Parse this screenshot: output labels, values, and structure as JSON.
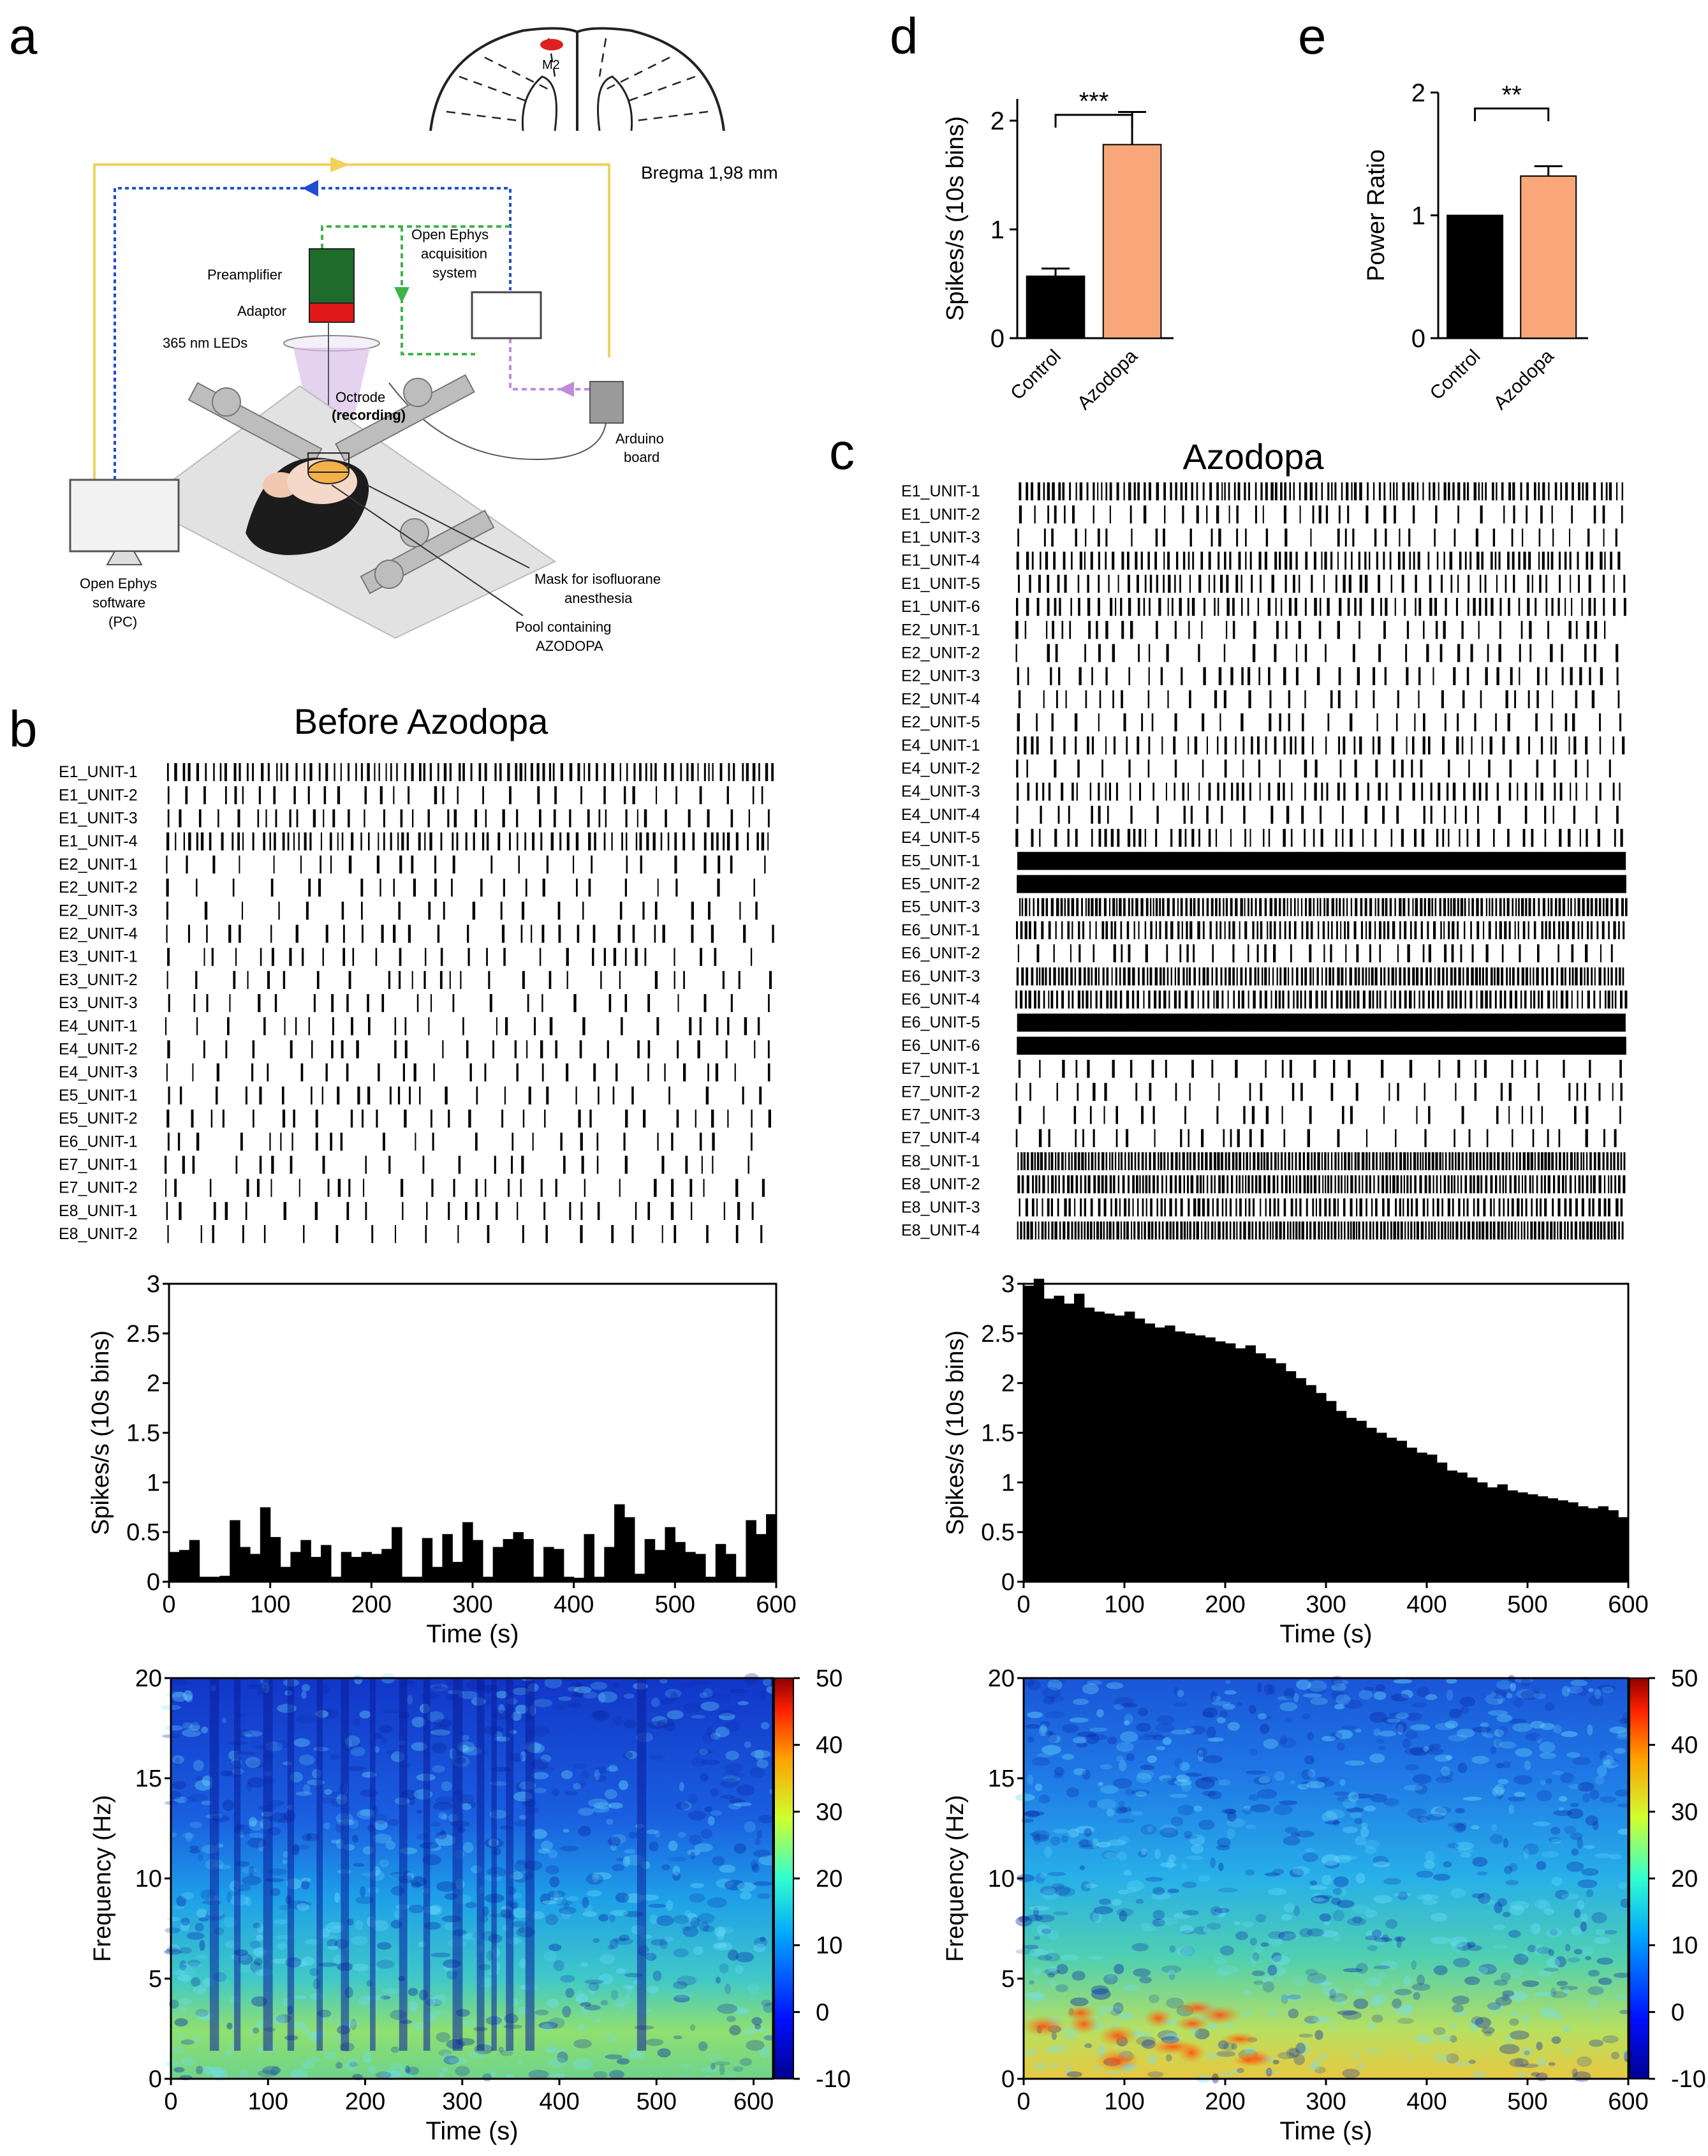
{
  "colors": {
    "black": "#000000",
    "azodopa": "#f8a67a",
    "yellow": "#f0d25a",
    "blue": "#1f4fd0",
    "green": "#3fb34a",
    "violet": "#c28bd9",
    "preamp": "#1f6b2a",
    "adaptor": "#e01818",
    "lesion": "#e02020"
  },
  "panels": {
    "a": "a",
    "b": "b",
    "c": "c",
    "d": "d",
    "e": "e"
  },
  "setup": {
    "brain_label": "M2",
    "bregma": "Bregma 1,98 mm",
    "acq_line1": "Open Ephys",
    "acq_line2": "acquisition",
    "acq_line3": "system",
    "preamp": "Preamplifier",
    "adaptor": "Adaptor",
    "leds": "365 nm LEDs",
    "octrode": "Octrode",
    "recording": "(recording)",
    "arduino1": "Arduino",
    "arduino2": "board",
    "pc1": "Open Ephys",
    "pc2": "software",
    "pc3": "(PC)",
    "mask1": "Mask for isofluorane",
    "mask2": "anesthesia",
    "pool1": "Pool containing",
    "pool2": "AZODOPA"
  },
  "titles": {
    "before": "Before Azodopa",
    "azodopa": "Azodopa"
  },
  "raster_before": {
    "units": [
      "E1_UNIT-1",
      "E1_UNIT-2",
      "E1_UNIT-3",
      "E1_UNIT-4",
      "E2_UNIT-1",
      "E2_UNIT-2",
      "E2_UNIT-3",
      "E2_UNIT-4",
      "E3_UNIT-1",
      "E3_UNIT-2",
      "E3_UNIT-3",
      "E4_UNIT-1",
      "E4_UNIT-2",
      "E4_UNIT-3",
      "E5_UNIT-1",
      "E5_UNIT-2",
      "E6_UNIT-1",
      "E7_UNIT-1",
      "E7_UNIT-2",
      "E8_UNIT-1",
      "E8_UNIT-2"
    ],
    "density": [
      0.85,
      0.45,
      0.55,
      0.8,
      0.18,
      0.15,
      0.22,
      0.28,
      0.2,
      0.12,
      0.2,
      0.22,
      0.22,
      0.22,
      0.22,
      0.22,
      0.08,
      0.1,
      0.18,
      0.22,
      0.2
    ]
  },
  "raster_azodopa": {
    "units": [
      "E1_UNIT-1",
      "E1_UNIT-2",
      "E1_UNIT-3",
      "E1_UNIT-4",
      "E1_UNIT-5",
      "E1_UNIT-6",
      "E2_UNIT-1",
      "E2_UNIT-2",
      "E2_UNIT-3",
      "E2_UNIT-4",
      "E2_UNIT-5",
      "E4_UNIT-1",
      "E4_UNIT-2",
      "E4_UNIT-3",
      "E4_UNIT-4",
      "E4_UNIT-5",
      "E5_UNIT-1",
      "E5_UNIT-2",
      "E5_UNIT-3",
      "E6_UNIT-1",
      "E6_UNIT-2",
      "E6_UNIT-3",
      "E6_UNIT-4",
      "E6_UNIT-5",
      "E6_UNIT-6",
      "E7_UNIT-1",
      "E7_UNIT-2",
      "E7_UNIT-3",
      "E7_UNIT-4",
      "E8_UNIT-1",
      "E8_UNIT-2",
      "E8_UNIT-3",
      "E8_UNIT-4"
    ],
    "density": [
      0.9,
      0.55,
      0.45,
      0.85,
      0.75,
      0.8,
      0.5,
      0.35,
      0.55,
      0.45,
      0.45,
      0.75,
      0.45,
      0.75,
      0.45,
      0.7,
      1.0,
      1.0,
      0.95,
      0.9,
      0.6,
      0.95,
      0.92,
      1.0,
      1.0,
      0.35,
      0.35,
      0.3,
      0.4,
      0.97,
      0.95,
      0.9,
      0.97
    ]
  },
  "chart_data": [
    {
      "type": "bar",
      "name": "panel-d",
      "categories": [
        "Control",
        "Azodopa"
      ],
      "values": [
        0.57,
        1.78
      ],
      "errors": [
        0.07,
        0.3
      ],
      "ylabel": "Spikes/s (10s bins)",
      "ylim": [
        0,
        2.2
      ],
      "yticks": [
        "0",
        "1",
        "2"
      ],
      "significance": "***"
    },
    {
      "type": "bar",
      "name": "panel-e",
      "categories": [
        "Control",
        "Azodopa"
      ],
      "values": [
        1.0,
        1.32
      ],
      "errors": [
        0,
        0.08
      ],
      "ylabel": "Power Ratio",
      "ylim": [
        0,
        2
      ],
      "yticks": [
        "0",
        "1",
        "2"
      ],
      "significance": "**"
    },
    {
      "type": "bar",
      "name": "rate-before",
      "x": [
        5,
        15,
        25,
        35,
        45,
        55,
        65,
        75,
        85,
        95,
        105,
        115,
        125,
        135,
        145,
        155,
        165,
        175,
        185,
        195,
        205,
        215,
        225,
        235,
        245,
        255,
        265,
        275,
        285,
        295,
        305,
        315,
        325,
        335,
        345,
        355,
        365,
        375,
        385,
        395,
        405,
        415,
        425,
        435,
        445,
        455,
        465,
        475,
        485,
        495,
        505,
        515,
        525,
        535,
        545,
        555,
        565,
        575,
        585,
        595
      ],
      "values": [
        0.3,
        0.32,
        0.42,
        0.05,
        0.05,
        0.06,
        0.62,
        0.35,
        0.28,
        0.75,
        0.45,
        0.15,
        0.3,
        0.42,
        0.25,
        0.37,
        0.05,
        0.3,
        0.25,
        0.3,
        0.28,
        0.33,
        0.55,
        0.05,
        0.05,
        0.44,
        0.15,
        0.48,
        0.2,
        0.6,
        0.42,
        0.05,
        0.35,
        0.43,
        0.5,
        0.43,
        0.05,
        0.35,
        0.33,
        0.05,
        0.04,
        0.48,
        0.05,
        0.35,
        0.78,
        0.65,
        0.08,
        0.43,
        0.32,
        0.55,
        0.4,
        0.3,
        0.28,
        0.05,
        0.38,
        0.28,
        0.05,
        0.62,
        0.48,
        0.68
      ],
      "xlabel": "Time (s)",
      "ylabel": "Spikes/s (10s bins)",
      "xlim": [
        0,
        600
      ],
      "ylim": [
        0,
        3
      ],
      "xticks": [
        "0",
        "100",
        "200",
        "300",
        "400",
        "500",
        "600"
      ],
      "yticks": [
        "0",
        "0.5",
        "1",
        "1.5",
        "2",
        "2.5",
        "3"
      ]
    },
    {
      "type": "bar",
      "name": "rate-azodopa",
      "x": [
        5,
        15,
        25,
        35,
        45,
        55,
        65,
        75,
        85,
        95,
        105,
        115,
        125,
        135,
        145,
        155,
        165,
        175,
        185,
        195,
        205,
        215,
        225,
        235,
        245,
        255,
        265,
        275,
        285,
        295,
        305,
        315,
        325,
        335,
        345,
        355,
        365,
        375,
        385,
        395,
        405,
        415,
        425,
        435,
        445,
        455,
        465,
        475,
        485,
        495,
        505,
        515,
        525,
        535,
        545,
        555,
        565,
        575,
        585,
        595
      ],
      "values": [
        2.98,
        3.05,
        2.85,
        2.88,
        2.8,
        2.9,
        2.76,
        2.72,
        2.7,
        2.68,
        2.72,
        2.65,
        2.6,
        2.56,
        2.58,
        2.52,
        2.5,
        2.48,
        2.46,
        2.42,
        2.4,
        2.35,
        2.38,
        2.3,
        2.25,
        2.2,
        2.12,
        2.05,
        1.98,
        1.9,
        1.82,
        1.72,
        1.65,
        1.62,
        1.55,
        1.5,
        1.45,
        1.42,
        1.35,
        1.3,
        1.28,
        1.2,
        1.12,
        1.1,
        1.05,
        1.0,
        0.95,
        0.98,
        0.92,
        0.9,
        0.88,
        0.86,
        0.84,
        0.82,
        0.8,
        0.76,
        0.74,
        0.76,
        0.72,
        0.65
      ],
      "xlabel": "Time (s)",
      "ylabel": "Spikes/s (10s bins)",
      "xlim": [
        0,
        600
      ],
      "ylim": [
        0,
        3
      ],
      "xticks": [
        "0",
        "100",
        "200",
        "300",
        "400",
        "500",
        "600"
      ],
      "yticks": [
        "0",
        "0.5",
        "1",
        "1.5",
        "2",
        "2.5",
        "3"
      ]
    },
    {
      "type": "heatmap",
      "name": "spectrogram-before",
      "xlabel": "Time (s)",
      "ylabel": "Frequency (Hz)",
      "xlim": [
        0,
        620
      ],
      "ylim": [
        0,
        20
      ],
      "xticks": [
        "0",
        "100",
        "200",
        "300",
        "400",
        "500",
        "600"
      ],
      "yticks": [
        "0",
        "5",
        "10",
        "15",
        "20"
      ],
      "colorbar": [
        -10,
        50
      ],
      "colorbar_ticks": [
        "50",
        "40",
        "30",
        "20",
        "10",
        "0",
        "-10"
      ]
    },
    {
      "type": "heatmap",
      "name": "spectrogram-azodopa",
      "xlabel": "Time (s)",
      "ylabel": "Frequency (Hz)",
      "xlim": [
        0,
        600
      ],
      "ylim": [
        0,
        20
      ],
      "xticks": [
        "0",
        "100",
        "200",
        "300",
        "400",
        "500",
        "600"
      ],
      "yticks": [
        "0",
        "5",
        "10",
        "15",
        "20"
      ],
      "colorbar": [
        -10,
        50
      ],
      "colorbar_ticks": [
        "50",
        "40",
        "30",
        "20",
        "10",
        "0",
        "-10"
      ]
    }
  ]
}
